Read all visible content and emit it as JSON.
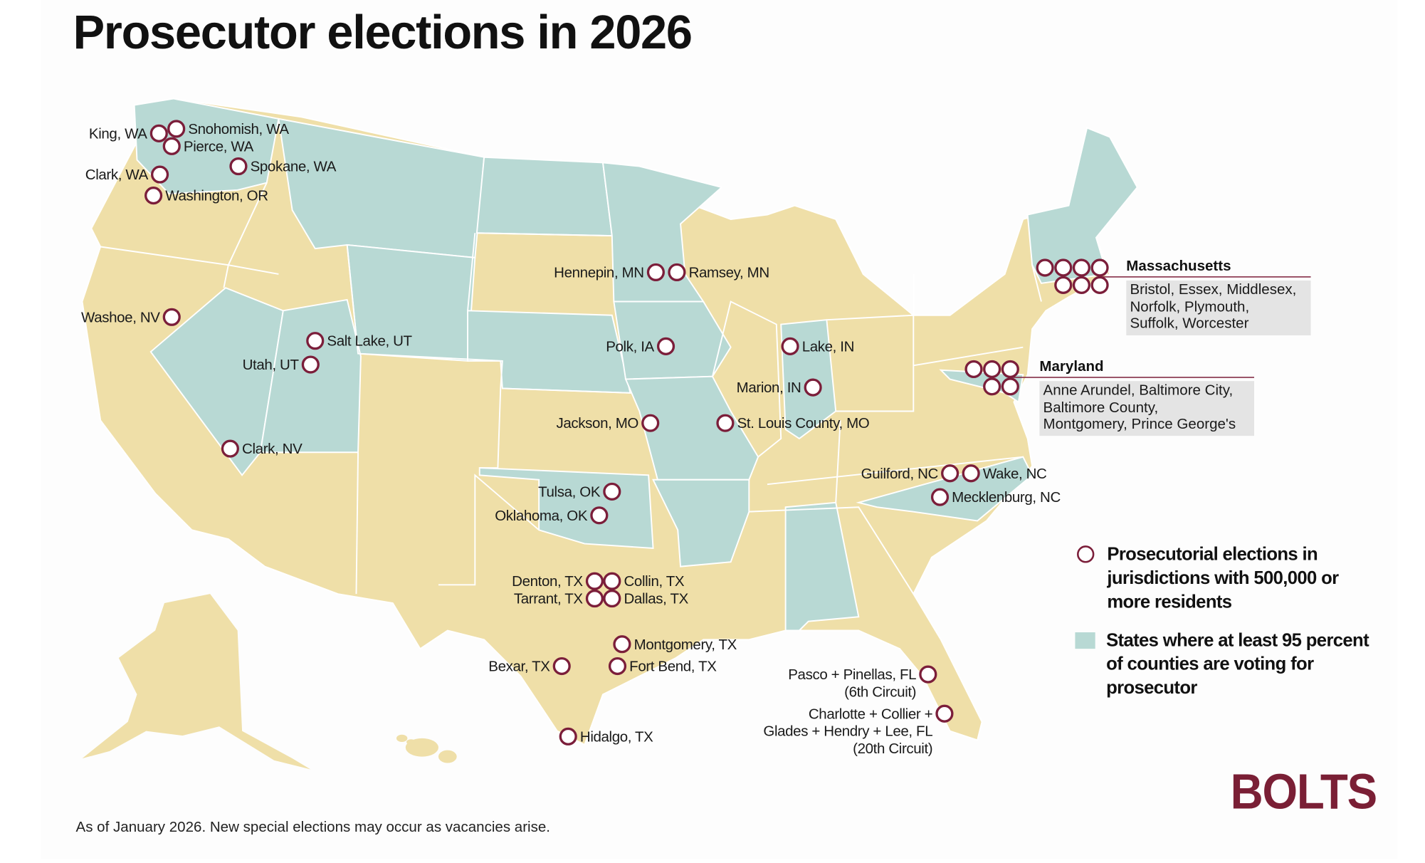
{
  "title": "Prosecutor elections in 2026",
  "colors": {
    "marker": "#7b1e3a",
    "state_default": "#efdfa8",
    "state_95_percent": "#b8d9d4",
    "callout_box": "#e4e4e4",
    "logo": "#7a1f35"
  },
  "markers": [
    {
      "label": [
        "King, WA"
      ]
    },
    {
      "label": [
        "Snohomish, WA"
      ]
    },
    {
      "label": [
        "Pierce, WA"
      ]
    },
    {
      "label": [
        "Spokane, WA"
      ]
    },
    {
      "label": [
        "Clark, WA"
      ]
    },
    {
      "label": [
        "Washington, OR"
      ]
    },
    {
      "label": [
        "Washoe, NV"
      ]
    },
    {
      "label": [
        "Salt Lake, UT"
      ]
    },
    {
      "label": [
        "Utah, UT"
      ]
    },
    {
      "label": [
        "Clark, NV"
      ]
    },
    {
      "label": [
        "Hennepin, MN"
      ]
    },
    {
      "label": [
        "Ramsey, MN"
      ]
    },
    {
      "label": [
        "Polk, IA"
      ]
    },
    {
      "label": [
        "Jackson, MO"
      ]
    },
    {
      "label": [
        "St. Louis County, MO"
      ]
    },
    {
      "label": [
        "Lake, IN"
      ]
    },
    {
      "label": [
        "Marion, IN"
      ]
    },
    {
      "label": [
        "Tulsa, OK"
      ]
    },
    {
      "label": [
        "Oklahoma, OK"
      ]
    },
    {
      "label": [
        "Denton, TX"
      ]
    },
    {
      "label": [
        "Collin, TX"
      ]
    },
    {
      "label": [
        "Tarrant, TX"
      ]
    },
    {
      "label": [
        "Dallas, TX"
      ]
    },
    {
      "label": [
        "Montgomery, TX"
      ]
    },
    {
      "label": [
        "Bexar, TX"
      ]
    },
    {
      "label": [
        "Fort Bend, TX"
      ]
    },
    {
      "label": [
        "Hidalgo, TX"
      ]
    },
    {
      "label": [
        "Guilford, NC"
      ]
    },
    {
      "label": [
        "Wake, NC"
      ]
    },
    {
      "label": [
        "Mecklenburg, NC"
      ]
    },
    {
      "label": [
        "Pasco + Pinellas, FL",
        "(6th Circuit)"
      ]
    },
    {
      "label": [
        "Charlotte + Collier +",
        "Glades + Hendry + Lee, FL",
        "(20th Circuit)"
      ]
    }
  ],
  "callouts": {
    "massachusetts": {
      "title": "Massachusetts",
      "marker_count": 7,
      "lines": [
        "Bristol, Essex, Middlesex,",
        "Norfolk, Plymouth,",
        "Suffolk, Worcester"
      ]
    },
    "maryland": {
      "title": "Maryland",
      "marker_count": 5,
      "lines": [
        "Anne Arundel, Baltimore City,",
        "Baltimore County,",
        "Montgomery, Prince George's"
      ]
    }
  },
  "legend": {
    "marker_label": "Prosecutorial elections in jurisdictions with 500,000 or more residents",
    "teal_label": "States where at least 95 percent of counties are voting for prosecutor"
  },
  "footer": "As of January 2026. New special elections may occur as vacancies arise.",
  "logo": "BOLTS"
}
